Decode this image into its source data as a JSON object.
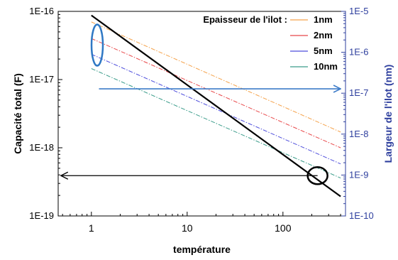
{
  "chart_data": {
    "type": "line",
    "xlabel": "température",
    "ylabel_left": "Capacité total (F)",
    "ylabel_right": "Largeur de l'ilot (nm)",
    "x_scale": "log",
    "y_scale": "log",
    "xlim": [
      0.45,
      450
    ],
    "ylim_left": [
      1e-19,
      1e-16
    ],
    "ylim_right": [
      1e-10,
      1e-05
    ],
    "x_ticks": [
      {
        "value": 1,
        "label": "1"
      },
      {
        "value": 10,
        "label": "10"
      },
      {
        "value": 100,
        "label": "100"
      }
    ],
    "y_ticks_left": [
      {
        "value": 1e-16,
        "label": "1E-16"
      },
      {
        "value": 1e-17,
        "label": "1E-17"
      },
      {
        "value": 1e-18,
        "label": "1E-18"
      },
      {
        "value": 1e-19,
        "label": "1E-19"
      }
    ],
    "y_ticks_right": [
      {
        "value": 1e-05,
        "label": "1E-5"
      },
      {
        "value": 1e-06,
        "label": "1E-6"
      },
      {
        "value": 1e-07,
        "label": "1E-7"
      },
      {
        "value": 1e-08,
        "label": "1E-8"
      },
      {
        "value": 1e-09,
        "label": "1E-9"
      },
      {
        "value": 1e-10,
        "label": "1E-10"
      }
    ],
    "legend": {
      "title": "Epaisseur de l'ilot :",
      "placement": "top-right"
    },
    "series": [
      {
        "name": "1nm",
        "axis": "left",
        "color": "#f5a24a",
        "style": "dashdot",
        "x": [
          1,
          400
        ],
        "y": [
          7e-17,
          1.7e-18
        ]
      },
      {
        "name": "2nm",
        "axis": "left",
        "color": "#e8484a",
        "style": "dashdot",
        "x": [
          1,
          400
        ],
        "y": [
          4e-17,
          1e-18
        ]
      },
      {
        "name": "5nm",
        "axis": "left",
        "color": "#4d4ddc",
        "style": "dashdot",
        "x": [
          1,
          400
        ],
        "y": [
          2.35e-17,
          5.8e-19
        ]
      },
      {
        "name": "10nm",
        "axis": "left",
        "color": "#3a9c8a",
        "style": "dashdot",
        "x": [
          1,
          400
        ],
        "y": [
          1.45e-17,
          3.6e-19
        ]
      }
    ],
    "reference_line": {
      "axis": "right",
      "color": "#000000",
      "x": [
        1,
        400
      ],
      "y": [
        8e-06,
        3e-10
      ]
    },
    "annotations": [
      {
        "type": "ellipse",
        "color": "#2f78c4",
        "center": {
          "x": 1.15,
          "y_left": 3.2e-17
        }
      },
      {
        "type": "arrow",
        "color": "#3d7cc9",
        "axis": "right",
        "from_x": 1.2,
        "to_x": 400,
        "y": 1.28e-07
      },
      {
        "type": "ellipse",
        "color": "#000000",
        "center": {
          "x": 230,
          "y_left": 3.9e-19
        }
      },
      {
        "type": "arrow",
        "color": "#000000",
        "axis": "left",
        "from_x": 230,
        "to_x": 0.48,
        "y": 3.9e-19
      }
    ]
  }
}
